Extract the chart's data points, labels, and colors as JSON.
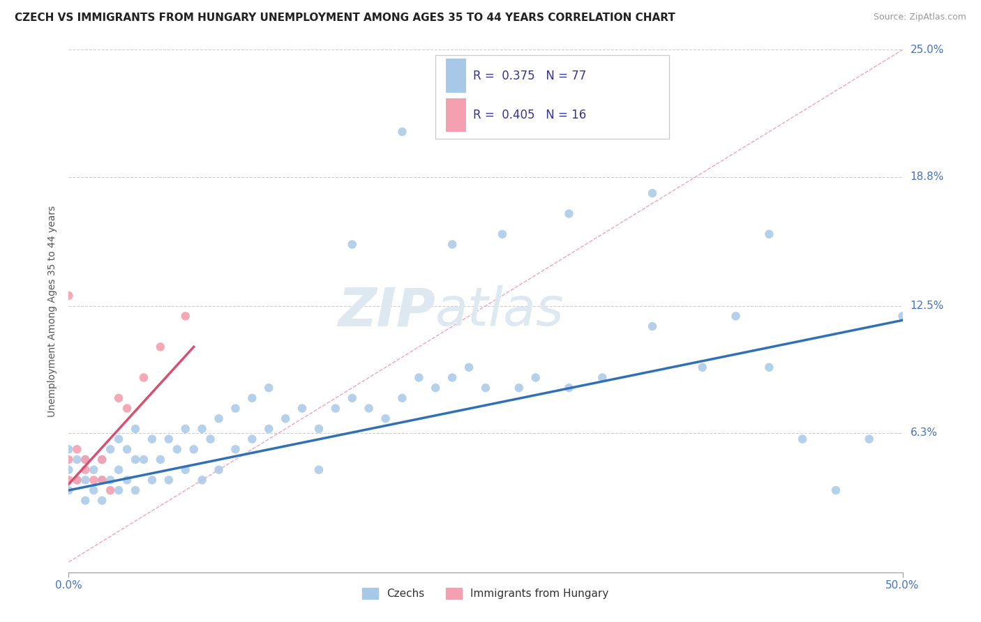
{
  "title": "CZECH VS IMMIGRANTS FROM HUNGARY UNEMPLOYMENT AMONG AGES 35 TO 44 YEARS CORRELATION CHART",
  "source_text": "Source: ZipAtlas.com",
  "ylabel": "Unemployment Among Ages 35 to 44 years",
  "xlim": [
    0.0,
    0.5
  ],
  "ylim": [
    -0.005,
    0.25
  ],
  "ytick_values": [
    0.0,
    0.063,
    0.125,
    0.188,
    0.25
  ],
  "ytick_labels": [
    "",
    "6.3%",
    "12.5%",
    "18.8%",
    "25.0%"
  ],
  "grid_color": "#cccccc",
  "background_color": "#ffffff",
  "watermark_zip": "ZIP",
  "watermark_atlas": "atlas",
  "watermark_color": "#dde8f0",
  "legend_R1": "0.375",
  "legend_N1": "77",
  "legend_R2": "0.405",
  "legend_N2": "16",
  "czech_color": "#a8c8e8",
  "hungary_color": "#f4a0b0",
  "czech_line_color": "#3070b8",
  "hungary_line_color": "#d85070",
  "diag_color": "#f4a0c0",
  "czech_scatter_x": [
    0.0,
    0.0,
    0.0,
    0.005,
    0.005,
    0.01,
    0.01,
    0.01,
    0.015,
    0.015,
    0.02,
    0.02,
    0.02,
    0.025,
    0.025,
    0.03,
    0.03,
    0.03,
    0.035,
    0.035,
    0.04,
    0.04,
    0.04,
    0.045,
    0.05,
    0.05,
    0.055,
    0.06,
    0.06,
    0.065,
    0.07,
    0.07,
    0.075,
    0.08,
    0.08,
    0.085,
    0.09,
    0.09,
    0.1,
    0.1,
    0.11,
    0.11,
    0.12,
    0.12,
    0.13,
    0.14,
    0.15,
    0.15,
    0.16,
    0.17,
    0.18,
    0.19,
    0.2,
    0.21,
    0.22,
    0.23,
    0.24,
    0.25,
    0.27,
    0.28,
    0.3,
    0.32,
    0.35,
    0.38,
    0.4,
    0.42,
    0.44,
    0.46,
    0.48,
    0.5,
    0.17,
    0.2,
    0.23,
    0.26,
    0.3,
    0.35,
    0.42
  ],
  "czech_scatter_y": [
    0.035,
    0.045,
    0.055,
    0.04,
    0.05,
    0.03,
    0.04,
    0.05,
    0.035,
    0.045,
    0.03,
    0.04,
    0.05,
    0.04,
    0.055,
    0.035,
    0.045,
    0.06,
    0.04,
    0.055,
    0.035,
    0.05,
    0.065,
    0.05,
    0.04,
    0.06,
    0.05,
    0.04,
    0.06,
    0.055,
    0.045,
    0.065,
    0.055,
    0.04,
    0.065,
    0.06,
    0.045,
    0.07,
    0.055,
    0.075,
    0.06,
    0.08,
    0.065,
    0.085,
    0.07,
    0.075,
    0.065,
    0.045,
    0.075,
    0.08,
    0.075,
    0.07,
    0.08,
    0.09,
    0.085,
    0.09,
    0.095,
    0.085,
    0.085,
    0.09,
    0.085,
    0.09,
    0.115,
    0.095,
    0.12,
    0.095,
    0.06,
    0.035,
    0.06,
    0.12,
    0.155,
    0.21,
    0.155,
    0.16,
    0.17,
    0.18,
    0.16
  ],
  "hungary_scatter_x": [
    0.0,
    0.0,
    0.0,
    0.005,
    0.005,
    0.01,
    0.01,
    0.015,
    0.02,
    0.02,
    0.025,
    0.03,
    0.035,
    0.045,
    0.055,
    0.07
  ],
  "hungary_scatter_y": [
    0.13,
    0.05,
    0.04,
    0.055,
    0.04,
    0.05,
    0.045,
    0.04,
    0.05,
    0.04,
    0.035,
    0.08,
    0.075,
    0.09,
    0.105,
    0.12
  ],
  "czech_trend_x": [
    0.0,
    0.5
  ],
  "czech_trend_y": [
    0.035,
    0.118
  ],
  "hungary_trend_x": [
    0.0,
    0.075
  ],
  "hungary_trend_y": [
    0.038,
    0.105
  ],
  "diag_trend_x": [
    0.0,
    0.5
  ],
  "diag_trend_y": [
    0.0,
    0.25
  ],
  "title_fontsize": 11,
  "ylabel_fontsize": 10,
  "tick_fontsize": 11,
  "legend_fontsize": 12,
  "source_fontsize": 9,
  "watermark_fontsize_zip": 55,
  "watermark_fontsize_atlas": 55
}
